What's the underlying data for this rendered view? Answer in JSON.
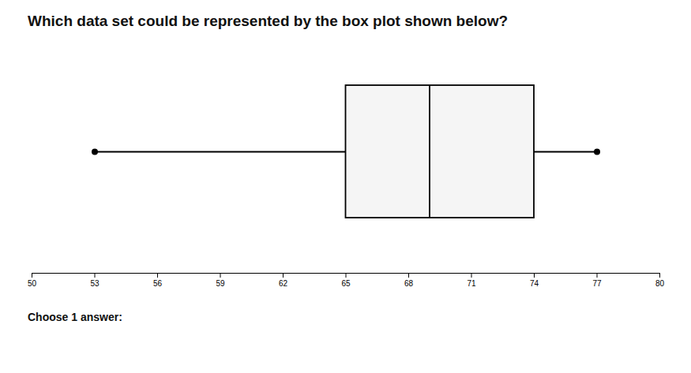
{
  "chart_data": {
    "type": "box",
    "title": "Which data set could be represented by the box plot shown below?",
    "subtitle": "Choose 1 answer:",
    "whisker_min": 53,
    "q1": 65,
    "median": 69,
    "q3": 74,
    "whisker_max": 77,
    "xlim": [
      50,
      80
    ],
    "xticks": [
      50,
      53,
      56,
      59,
      62,
      65,
      68,
      71,
      74,
      77,
      80
    ],
    "color": "#f5f5f5"
  }
}
